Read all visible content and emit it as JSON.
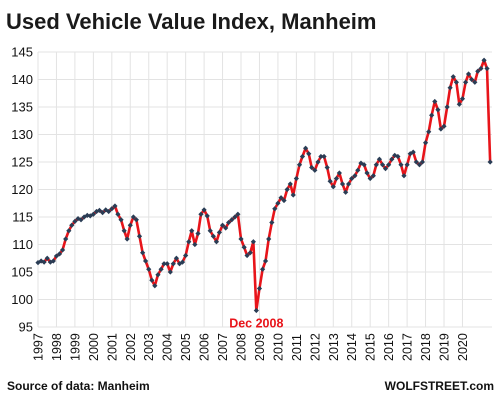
{
  "chart_data": {
    "type": "line",
    "title": "Used Vehicle Value Index, Manheim",
    "xlabel": "",
    "ylabel": "",
    "ylim": [
      95,
      145
    ],
    "yticks": [
      "95",
      "100",
      "105",
      "110",
      "115",
      "120",
      "125",
      "130",
      "135",
      "140",
      "145"
    ],
    "xticks": [
      "1997",
      "1998",
      "1999",
      "2000",
      "2001",
      "2002",
      "2003",
      "2004",
      "2005",
      "2006",
      "2007",
      "2008",
      "2009",
      "2010",
      "2011",
      "2012",
      "2013",
      "2014",
      "2015",
      "2016",
      "2017",
      "2018",
      "2019",
      "2020"
    ],
    "grid": true,
    "legend": "none",
    "series": [
      {
        "color": "#e8141a",
        "marker_color": "#2a3d55",
        "points": [
          [
            1997.0,
            106.7
          ],
          [
            1997.17,
            107.0
          ],
          [
            1997.33,
            106.8
          ],
          [
            1997.5,
            107.5
          ],
          [
            1997.67,
            106.8
          ],
          [
            1997.83,
            107.0
          ],
          [
            1998.0,
            107.9
          ],
          [
            1998.17,
            108.3
          ],
          [
            1998.33,
            109.0
          ],
          [
            1998.5,
            111.0
          ],
          [
            1998.67,
            112.5
          ],
          [
            1998.83,
            113.5
          ],
          [
            1999.0,
            114.2
          ],
          [
            1999.17,
            114.7
          ],
          [
            1999.33,
            114.5
          ],
          [
            1999.5,
            115.0
          ],
          [
            1999.67,
            115.3
          ],
          [
            1999.83,
            115.2
          ],
          [
            2000.0,
            115.5
          ],
          [
            2000.17,
            116.0
          ],
          [
            2000.33,
            116.2
          ],
          [
            2000.5,
            115.8
          ],
          [
            2000.67,
            116.3
          ],
          [
            2000.83,
            116.0
          ],
          [
            2001.0,
            116.5
          ],
          [
            2001.17,
            117.0
          ],
          [
            2001.33,
            115.5
          ],
          [
            2001.5,
            114.5
          ],
          [
            2001.67,
            112.5
          ],
          [
            2001.83,
            111.0
          ],
          [
            2002.0,
            113.5
          ],
          [
            2002.17,
            115.0
          ],
          [
            2002.33,
            114.5
          ],
          [
            2002.5,
            111.5
          ],
          [
            2002.67,
            108.5
          ],
          [
            2002.83,
            107.0
          ],
          [
            2003.0,
            105.5
          ],
          [
            2003.17,
            103.5
          ],
          [
            2003.33,
            102.5
          ],
          [
            2003.5,
            104.5
          ],
          [
            2003.67,
            105.5
          ],
          [
            2003.83,
            106.5
          ],
          [
            2004.0,
            106.5
          ],
          [
            2004.17,
            105.0
          ],
          [
            2004.33,
            106.5
          ],
          [
            2004.5,
            107.5
          ],
          [
            2004.67,
            106.5
          ],
          [
            2004.83,
            106.8
          ],
          [
            2005.0,
            108.0
          ],
          [
            2005.17,
            110.5
          ],
          [
            2005.33,
            112.5
          ],
          [
            2005.5,
            110.0
          ],
          [
            2005.67,
            112.0
          ],
          [
            2005.83,
            115.5
          ],
          [
            2006.0,
            116.3
          ],
          [
            2006.17,
            115.2
          ],
          [
            2006.33,
            112.5
          ],
          [
            2006.5,
            111.5
          ],
          [
            2006.67,
            110.5
          ],
          [
            2006.83,
            112.2
          ],
          [
            2007.0,
            113.5
          ],
          [
            2007.17,
            113.0
          ],
          [
            2007.33,
            114.0
          ],
          [
            2007.5,
            114.5
          ],
          [
            2007.67,
            115.0
          ],
          [
            2007.83,
            115.5
          ],
          [
            2008.0,
            111.0
          ],
          [
            2008.17,
            109.5
          ],
          [
            2008.33,
            108.0
          ],
          [
            2008.5,
            108.5
          ],
          [
            2008.67,
            110.5
          ],
          [
            2008.83,
            98.0
          ],
          [
            2009.0,
            102.0
          ],
          [
            2009.17,
            105.5
          ],
          [
            2009.33,
            107.0
          ],
          [
            2009.5,
            111.0
          ],
          [
            2009.67,
            114.0
          ],
          [
            2009.83,
            116.5
          ],
          [
            2010.0,
            117.5
          ],
          [
            2010.17,
            118.5
          ],
          [
            2010.33,
            118.0
          ],
          [
            2010.5,
            120.0
          ],
          [
            2010.67,
            121.0
          ],
          [
            2010.83,
            119.0
          ],
          [
            2011.0,
            122.0
          ],
          [
            2011.17,
            124.5
          ],
          [
            2011.33,
            126.0
          ],
          [
            2011.5,
            127.5
          ],
          [
            2011.67,
            126.5
          ],
          [
            2011.83,
            124.0
          ],
          [
            2012.0,
            123.5
          ],
          [
            2012.17,
            125.0
          ],
          [
            2012.33,
            126.0
          ],
          [
            2012.5,
            126.0
          ],
          [
            2012.67,
            124.0
          ],
          [
            2012.83,
            121.5
          ],
          [
            2013.0,
            120.5
          ],
          [
            2013.17,
            122.0
          ],
          [
            2013.33,
            123.0
          ],
          [
            2013.5,
            121.0
          ],
          [
            2013.67,
            119.5
          ],
          [
            2013.83,
            121.0
          ],
          [
            2014.0,
            122.0
          ],
          [
            2014.17,
            122.5
          ],
          [
            2014.33,
            123.5
          ],
          [
            2014.5,
            124.8
          ],
          [
            2014.67,
            124.5
          ],
          [
            2014.83,
            123.0
          ],
          [
            2015.0,
            122.0
          ],
          [
            2015.17,
            122.5
          ],
          [
            2015.33,
            124.5
          ],
          [
            2015.5,
            125.5
          ],
          [
            2015.67,
            124.5
          ],
          [
            2015.83,
            123.8
          ],
          [
            2016.0,
            124.5
          ],
          [
            2016.17,
            125.5
          ],
          [
            2016.33,
            126.2
          ],
          [
            2016.5,
            126.0
          ],
          [
            2016.67,
            124.5
          ],
          [
            2016.83,
            122.5
          ],
          [
            2017.0,
            124.5
          ],
          [
            2017.17,
            126.5
          ],
          [
            2017.33,
            126.8
          ],
          [
            2017.5,
            125.0
          ],
          [
            2017.67,
            124.5
          ],
          [
            2017.83,
            125.0
          ],
          [
            2018.0,
            128.5
          ],
          [
            2018.17,
            130.5
          ],
          [
            2018.33,
            133.5
          ],
          [
            2018.5,
            136.0
          ],
          [
            2018.67,
            134.5
          ],
          [
            2018.83,
            131.0
          ],
          [
            2019.0,
            131.5
          ],
          [
            2019.17,
            135.0
          ],
          [
            2019.33,
            138.5
          ],
          [
            2019.5,
            140.5
          ],
          [
            2019.67,
            139.5
          ],
          [
            2019.83,
            135.5
          ],
          [
            2020.0,
            136.5
          ],
          [
            2020.17,
            139.5
          ],
          [
            2020.33,
            141.0
          ],
          [
            2020.5,
            140.0
          ],
          [
            2020.67,
            139.5
          ],
          [
            2020.83,
            141.5
          ],
          [
            2021.0,
            142.0
          ],
          [
            2021.17,
            143.5
          ],
          [
            2021.33,
            142.0
          ],
          [
            2021.5,
            125.0
          ]
        ]
      }
    ],
    "annotations": [
      {
        "text": "Dec 2008",
        "x": 2008.83,
        "y": 98.0,
        "color": "#e8141a"
      }
    ],
    "footer_left": "Source of data: Manheim",
    "footer_right": "WOLFSTREET.com"
  }
}
